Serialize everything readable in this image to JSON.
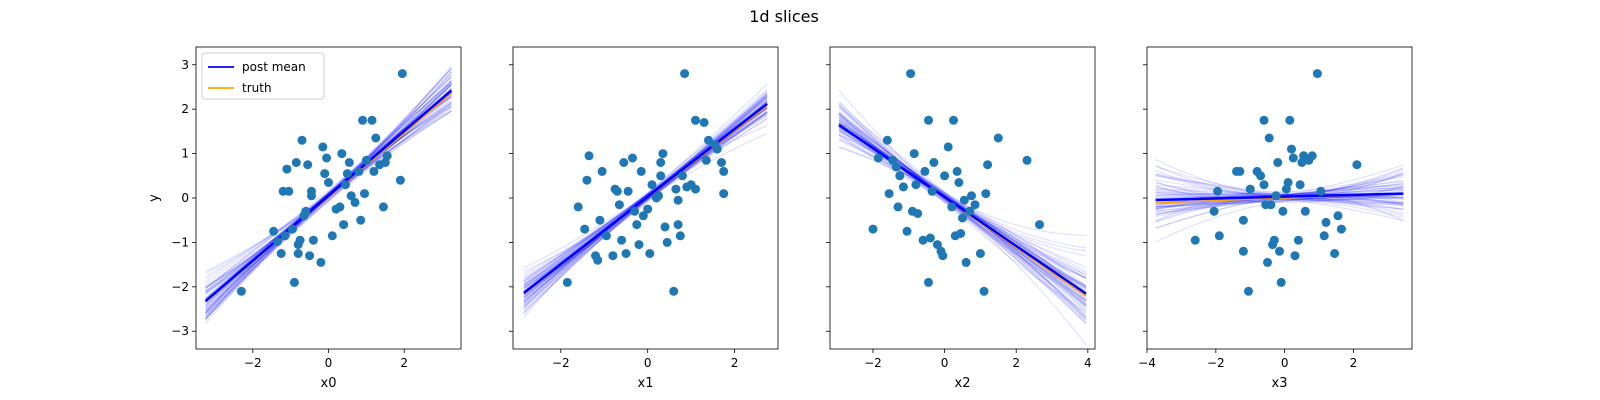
{
  "figure": {
    "title": "1d slices"
  },
  "colors": {
    "post_mean": "#0000ff",
    "truth": "#ffa500",
    "posterior_samples": "#0000ff",
    "scatter": "#1f77b4",
    "axes": "#000000",
    "background": "#ffffff"
  },
  "chart_data": [
    {
      "type": "scatter",
      "xlabel": "x0",
      "ylabel": "y",
      "xlim": [
        -3.5,
        3.5
      ],
      "ylim": [
        -3.4,
        3.4
      ],
      "xticks": [
        -2,
        0,
        2
      ],
      "yticks": [
        -3,
        -2,
        -1,
        0,
        1,
        2,
        3
      ],
      "grid": false,
      "legend": {
        "placement": "top-left",
        "entries": [
          {
            "label": "post mean",
            "color": "#0000ff"
          },
          {
            "label": "truth",
            "color": "#ffa500"
          }
        ]
      },
      "truth_line": {
        "slope": 0.72,
        "intercept": 0.02
      },
      "mean_line": {
        "slope": 0.73,
        "intercept": 0.05
      },
      "points": [
        [
          -2.3,
          -2.1
        ],
        [
          -1.45,
          -0.75
        ],
        [
          -1.35,
          -0.98
        ],
        [
          -1.25,
          -1.25
        ],
        [
          -1.15,
          -0.85
        ],
        [
          -1.2,
          0.15
        ],
        [
          -1.1,
          0.65
        ],
        [
          -1.05,
          0.15
        ],
        [
          -0.95,
          -0.7
        ],
        [
          -0.9,
          -1.9
        ],
        [
          -0.85,
          0.8
        ],
        [
          -0.8,
          -1.25
        ],
        [
          -0.8,
          -1.05
        ],
        [
          -0.75,
          -0.95
        ],
        [
          -0.7,
          1.3
        ],
        [
          -0.65,
          -0.4
        ],
        [
          -0.6,
          -0.3
        ],
        [
          -0.55,
          0.75
        ],
        [
          -0.5,
          -1.3
        ],
        [
          -0.45,
          0.15
        ],
        [
          -0.45,
          0.05
        ],
        [
          -0.4,
          -0.95
        ],
        [
          -0.2,
          -1.45
        ],
        [
          -0.15,
          1.15
        ],
        [
          -0.1,
          0.55
        ],
        [
          -0.05,
          0.9
        ],
        [
          0.0,
          0.35
        ],
        [
          0.1,
          -0.85
        ],
        [
          0.2,
          -0.25
        ],
        [
          0.3,
          -0.2
        ],
        [
          0.35,
          1.0
        ],
        [
          0.4,
          -0.6
        ],
        [
          0.45,
          0.3
        ],
        [
          0.5,
          0.55
        ],
        [
          0.55,
          0.8
        ],
        [
          0.6,
          0.05
        ],
        [
          0.7,
          -0.1
        ],
        [
          0.8,
          0.6
        ],
        [
          0.85,
          -0.5
        ],
        [
          0.9,
          1.75
        ],
        [
          0.95,
          0.1
        ],
        [
          1.0,
          0.85
        ],
        [
          1.15,
          1.75
        ],
        [
          1.2,
          0.6
        ],
        [
          1.25,
          1.35
        ],
        [
          1.35,
          0.75
        ],
        [
          1.45,
          -0.2
        ],
        [
          1.5,
          0.8
        ],
        [
          1.55,
          0.95
        ],
        [
          1.9,
          0.4
        ],
        [
          1.95,
          2.8
        ]
      ]
    },
    {
      "type": "scatter",
      "xlabel": "x1",
      "xlim": [
        -3.1,
        3.0
      ],
      "ylim": [
        -3.4,
        3.4
      ],
      "xticks": [
        -2,
        0,
        2
      ],
      "yticks": [
        -3,
        -2,
        -1,
        0,
        1,
        2,
        3
      ],
      "grid": false,
      "truth_line": {
        "slope": 0.75,
        "intercept": 0.01
      },
      "mean_line": {
        "slope": 0.76,
        "intercept": 0.03
      },
      "points": [
        [
          -1.85,
          -1.9
        ],
        [
          -1.6,
          -0.2
        ],
        [
          -1.45,
          -0.7
        ],
        [
          -1.4,
          0.4
        ],
        [
          -1.35,
          0.95
        ],
        [
          -1.2,
          -1.3
        ],
        [
          -1.15,
          -1.4
        ],
        [
          -1.1,
          -0.5
        ],
        [
          -1.05,
          0.6
        ],
        [
          -0.95,
          -0.85
        ],
        [
          -0.8,
          -1.3
        ],
        [
          -0.75,
          0.2
        ],
        [
          -0.7,
          0.15
        ],
        [
          -0.65,
          -0.15
        ],
        [
          -0.6,
          -0.95
        ],
        [
          -0.55,
          0.8
        ],
        [
          -0.5,
          -1.25
        ],
        [
          -0.45,
          0.15
        ],
        [
          -0.35,
          0.9
        ],
        [
          -0.3,
          -0.3
        ],
        [
          -0.25,
          -0.6
        ],
        [
          -0.2,
          -1.05
        ],
        [
          -0.15,
          0.6
        ],
        [
          -0.1,
          -0.4
        ],
        [
          0.0,
          -0.25
        ],
        [
          0.05,
          -1.25
        ],
        [
          0.1,
          0.3
        ],
        [
          0.2,
          0.0
        ],
        [
          0.25,
          0.05
        ],
        [
          0.3,
          0.5
        ],
        [
          0.3,
          0.8
        ],
        [
          0.35,
          1.0
        ],
        [
          0.4,
          -0.65
        ],
        [
          0.45,
          -1.0
        ],
        [
          0.6,
          -2.1
        ],
        [
          0.65,
          0.2
        ],
        [
          0.7,
          -0.05
        ],
        [
          0.7,
          -0.6
        ],
        [
          0.75,
          -0.85
        ],
        [
          0.8,
          0.5
        ],
        [
          0.85,
          2.8
        ],
        [
          0.9,
          0.25
        ],
        [
          1.0,
          0.3
        ],
        [
          1.1,
          0.2
        ],
        [
          1.1,
          1.75
        ],
        [
          1.3,
          1.7
        ],
        [
          1.35,
          0.85
        ],
        [
          1.4,
          1.3
        ],
        [
          1.55,
          1.2
        ],
        [
          1.6,
          1.1
        ],
        [
          1.7,
          0.8
        ],
        [
          1.75,
          0.6
        ],
        [
          1.75,
          0.1
        ]
      ]
    },
    {
      "type": "scatter",
      "xlabel": "x2",
      "xlim": [
        -3.2,
        4.2
      ],
      "ylim": [
        -3.4,
        3.4
      ],
      "xticks": [
        -2,
        0,
        2,
        4
      ],
      "yticks": [
        -3,
        -2,
        -1,
        0,
        1,
        2,
        3
      ],
      "grid": false,
      "truth_line": {
        "slope": -0.56,
        "intercept": 0.0
      },
      "mean_line": {
        "slope": -0.55,
        "intercept": 0.02
      },
      "points": [
        [
          -2.0,
          -0.7
        ],
        [
          -1.85,
          0.9
        ],
        [
          -1.6,
          1.3
        ],
        [
          -1.55,
          0.1
        ],
        [
          -1.45,
          0.85
        ],
        [
          -1.35,
          0.7
        ],
        [
          -1.3,
          -0.2
        ],
        [
          -1.25,
          0.5
        ],
        [
          -1.15,
          0.25
        ],
        [
          -1.05,
          -0.75
        ],
        [
          -0.95,
          2.8
        ],
        [
          -0.9,
          -0.3
        ],
        [
          -0.85,
          1.0
        ],
        [
          -0.8,
          0.3
        ],
        [
          -0.75,
          -0.35
        ],
        [
          -0.6,
          -0.95
        ],
        [
          -0.55,
          0.6
        ],
        [
          -0.45,
          -1.9
        ],
        [
          -0.45,
          1.75
        ],
        [
          -0.4,
          -0.9
        ],
        [
          -0.35,
          0.15
        ],
        [
          -0.3,
          0.8
        ],
        [
          -0.2,
          -1.05
        ],
        [
          -0.1,
          -1.2
        ],
        [
          -0.05,
          -1.3
        ],
        [
          0.0,
          0.5
        ],
        [
          0.1,
          1.15
        ],
        [
          0.2,
          -0.2
        ],
        [
          0.25,
          1.75
        ],
        [
          0.3,
          -0.85
        ],
        [
          0.35,
          0.6
        ],
        [
          0.4,
          0.35
        ],
        [
          0.45,
          -0.8
        ],
        [
          0.5,
          -0.45
        ],
        [
          0.55,
          -0.05
        ],
        [
          0.6,
          -1.45
        ],
        [
          0.7,
          -0.3
        ],
        [
          0.75,
          0.05
        ],
        [
          0.85,
          -0.15
        ],
        [
          1.0,
          -1.25
        ],
        [
          1.1,
          -2.1
        ],
        [
          1.15,
          0.1
        ],
        [
          1.2,
          0.75
        ],
        [
          1.5,
          1.35
        ],
        [
          2.3,
          0.85
        ],
        [
          2.65,
          -0.6
        ]
      ]
    },
    {
      "type": "scatter",
      "xlabel": "x3",
      "xlim": [
        -4.0,
        3.7
      ],
      "ylim": [
        -3.4,
        3.4
      ],
      "xticks": [
        -4,
        -2,
        0,
        2
      ],
      "yticks": [
        -3,
        -2,
        -1,
        0,
        1,
        2,
        3
      ],
      "grid": false,
      "truth_line": {
        "slope": 0.03,
        "intercept": 0.0
      },
      "mean_line": {
        "slope": 0.02,
        "intercept": 0.03
      },
      "points": [
        [
          -2.6,
          -0.95
        ],
        [
          -2.05,
          -0.3
        ],
        [
          -1.95,
          0.15
        ],
        [
          -1.9,
          -0.85
        ],
        [
          -1.4,
          0.6
        ],
        [
          -1.3,
          0.6
        ],
        [
          -1.2,
          -0.5
        ],
        [
          -1.2,
          -1.2
        ],
        [
          -1.05,
          -2.1
        ],
        [
          -1.0,
          0.2
        ],
        [
          -0.8,
          0.6
        ],
        [
          -0.7,
          0.5
        ],
        [
          -0.6,
          1.75
        ],
        [
          -0.6,
          0.3
        ],
        [
          -0.55,
          -0.15
        ],
        [
          -0.5,
          -1.45
        ],
        [
          -0.45,
          1.35
        ],
        [
          -0.4,
          -0.15
        ],
        [
          -0.35,
          -1.05
        ],
        [
          -0.3,
          -0.95
        ],
        [
          -0.25,
          0.05
        ],
        [
          -0.2,
          0.8
        ],
        [
          -0.15,
          -1.2
        ],
        [
          -0.1,
          -1.9
        ],
        [
          -0.05,
          -0.3
        ],
        [
          0.05,
          0.2
        ],
        [
          0.1,
          0.35
        ],
        [
          0.15,
          1.75
        ],
        [
          0.2,
          1.1
        ],
        [
          0.25,
          0.9
        ],
        [
          0.3,
          -1.3
        ],
        [
          0.4,
          -0.95
        ],
        [
          0.45,
          0.3
        ],
        [
          0.5,
          0.8
        ],
        [
          0.55,
          0.95
        ],
        [
          0.6,
          -0.3
        ],
        [
          0.7,
          0.85
        ],
        [
          0.8,
          0.95
        ],
        [
          0.95,
          2.8
        ],
        [
          1.05,
          0.15
        ],
        [
          1.15,
          -0.85
        ],
        [
          1.2,
          -0.55
        ],
        [
          1.45,
          -1.25
        ],
        [
          1.55,
          -0.4
        ],
        [
          1.65,
          -0.7
        ],
        [
          2.1,
          0.75
        ]
      ]
    }
  ]
}
